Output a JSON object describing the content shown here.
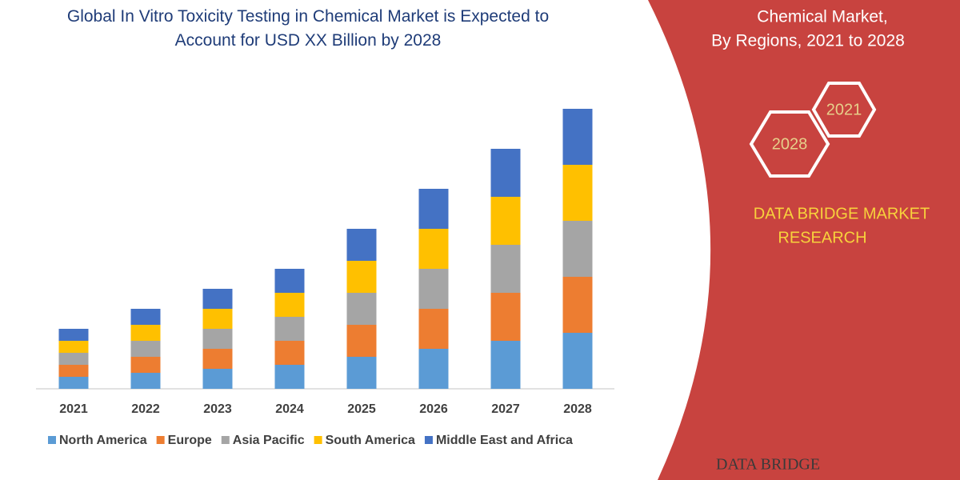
{
  "chart_data": {
    "type": "stacked_bar",
    "title": "Global In Vitro Toxicity Testing in Chemical Market is Expected to Account for USD XX Billion by 2028",
    "categories": [
      "2021",
      "2022",
      "2023",
      "2024",
      "2025",
      "2026",
      "2027",
      "2028"
    ],
    "series": [
      {
        "name": "North America",
        "color": "#5b9bd5",
        "values": [
          15,
          20,
          25,
          30,
          40,
          50,
          60,
          70
        ]
      },
      {
        "name": "Europe",
        "color": "#ed7d31",
        "values": [
          15,
          20,
          25,
          30,
          40,
          50,
          60,
          70
        ]
      },
      {
        "name": "Asia Pacific",
        "color": "#a5a5a5",
        "values": [
          15,
          20,
          25,
          30,
          40,
          50,
          60,
          70
        ]
      },
      {
        "name": "South America",
        "color": "#ffc000",
        "values": [
          15,
          20,
          25,
          30,
          40,
          50,
          60,
          70
        ]
      },
      {
        "name": "Middle East and Africa",
        "color": "#4472c4",
        "values": [
          15,
          20,
          25,
          30,
          40,
          50,
          60,
          70
        ]
      }
    ],
    "ylim": [
      0,
      350
    ],
    "legend": "bottom"
  },
  "panel": {
    "subtitle_lines": [
      "Chemical Market,",
      "By Regions, 2021 to 2028"
    ],
    "hex_labels": [
      "2021",
      "2028"
    ],
    "brand_lines": [
      "DATA BRIDGE MARKET",
      "RESEARCH"
    ],
    "logo": "DATA BRIDGE"
  }
}
